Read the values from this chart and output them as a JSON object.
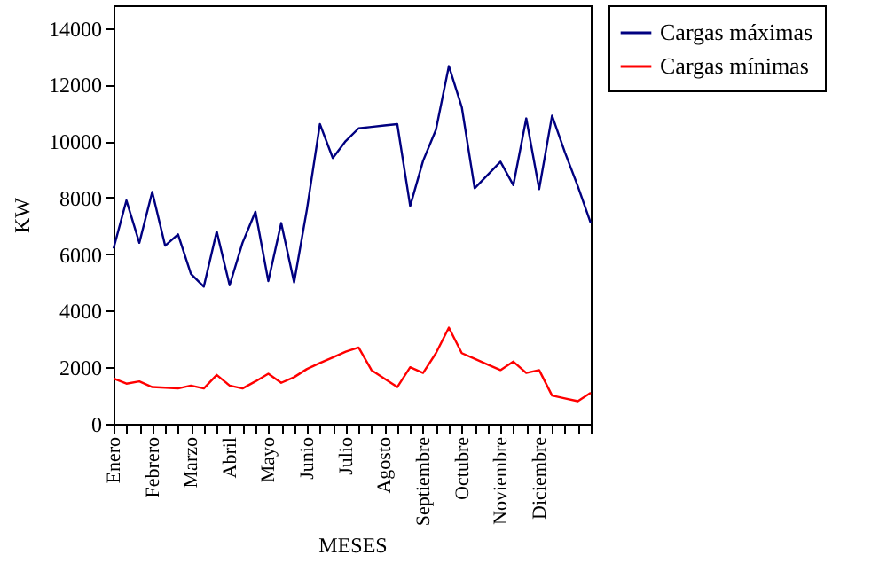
{
  "chart_data": {
    "type": "line",
    "xlabel": "MESES",
    "ylabel": "KW",
    "categories": [
      "Enero",
      null,
      null,
      "Febrero",
      null,
      null,
      "Marzo",
      null,
      null,
      "Abril",
      null,
      null,
      "Mayo",
      null,
      null,
      "Junio",
      null,
      null,
      "Julio",
      null,
      null,
      "Agosto",
      null,
      null,
      "Septiembre",
      null,
      null,
      "Octubre",
      null,
      null,
      "Noviembre",
      null,
      null,
      "Diciembre",
      null,
      null,
      null,
      null
    ],
    "series": [
      {
        "name": "Cargas máximas",
        "color": "#000080",
        "values": [
          6200,
          7900,
          6400,
          8200,
          6300,
          6700,
          5300,
          4850,
          6800,
          4900,
          6400,
          7500,
          5050,
          7100,
          5000,
          7600,
          10600,
          9400,
          10000,
          10450,
          10500,
          10550,
          10600,
          7700,
          9300,
          10400,
          12650,
          11200,
          8330,
          8800,
          9270,
          8440,
          10800,
          8300,
          10900,
          9600,
          8400,
          7100
        ]
      },
      {
        "name": "Cargas mínimas",
        "color": "#ff0000",
        "values": [
          1600,
          1420,
          1500,
          1300,
          1280,
          1250,
          1350,
          1250,
          1730,
          1350,
          1250,
          1500,
          1770,
          1450,
          1650,
          1940,
          2150,
          2350,
          2550,
          2700,
          1900,
          1600,
          1300,
          2000,
          1800,
          2500,
          3400,
          2500,
          2300,
          2100,
          1900,
          2200,
          1800,
          1900,
          1000,
          900,
          800,
          1100
        ]
      }
    ],
    "ylim": [
      0,
      14800
    ],
    "yticks": [
      0,
      2000,
      4000,
      6000,
      8000,
      10000,
      12000,
      14000
    ],
    "grid": false,
    "legend": "right"
  }
}
